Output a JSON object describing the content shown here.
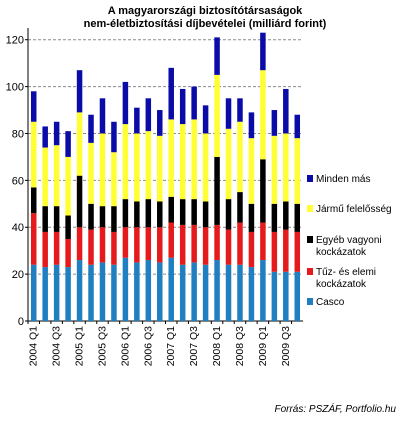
{
  "chart_data": {
    "type": "bar",
    "stacked": true,
    "title_line1": "A magyarországi biztosítótársaságok",
    "title_line2": "nem-életbiztosítási díjbevételei (milliárd forint)",
    "source": "Forrás: PSZÁF, Portfolio.hu",
    "ylim": [
      0,
      125
    ],
    "yticks": [
      0,
      20,
      40,
      60,
      80,
      100,
      120
    ],
    "grid": "dashed horizontal",
    "legend_position": "right",
    "categories": [
      "2004 Q1",
      "2004 Q2",
      "2004 Q3",
      "2004 Q4",
      "2005 Q1",
      "2005 Q2",
      "2005 Q3",
      "2005 Q4",
      "2006 Q1",
      "2006 Q2",
      "2006 Q3",
      "2006 Q4",
      "2007 Q1",
      "2007 Q2",
      "2007 Q3",
      "2007 Q4",
      "2008 Q1",
      "2008 Q2",
      "2008 Q3",
      "2008 Q4",
      "2009 Q1",
      "2009 Q2",
      "2009 Q3",
      "2009 Q4"
    ],
    "xtick_labels": [
      "2004 Q1",
      "2004 Q3",
      "2005 Q1",
      "2005 Q3",
      "2006 Q1",
      "2006 Q3",
      "2007 Q1",
      "2007 Q3",
      "2008 Q1",
      "2008 Q3",
      "2009 Q1",
      "2009 Q3"
    ],
    "series": [
      {
        "name": "Casco",
        "color": "#1F7FC0",
        "values": [
          24,
          23,
          24,
          23,
          26,
          24,
          25,
          24,
          27,
          25,
          26,
          25,
          27,
          24,
          25,
          24,
          26,
          24,
          24,
          23,
          26,
          21,
          21,
          21
        ]
      },
      {
        "name": "Tűz- és elemi kockázatok",
        "color": "#E41A1C",
        "values": [
          22,
          15,
          14,
          12,
          14,
          15,
          15,
          14,
          13,
          15,
          14,
          15,
          15,
          17,
          16,
          16,
          15,
          15,
          18,
          15,
          16,
          17,
          18,
          17
        ]
      },
      {
        "name": "Egyéb vagyoni kockázatok",
        "color": "#000000",
        "values": [
          11,
          11,
          11,
          10,
          22,
          11,
          9,
          11,
          12,
          11,
          12,
          11,
          11,
          11,
          11,
          11,
          29,
          13,
          13,
          12,
          27,
          12,
          12,
          12
        ]
      },
      {
        "name": "Jármű felelősség",
        "color": "#FFFF33",
        "values": [
          28,
          25,
          26,
          25,
          27,
          26,
          31,
          23,
          32,
          29,
          29,
          28,
          33,
          32,
          34,
          29,
          35,
          30,
          30,
          28,
          38,
          29,
          29,
          28
        ]
      },
      {
        "name": "Minden más",
        "color": "#0B0BA8",
        "values": [
          13,
          9,
          10,
          11,
          18,
          12,
          15,
          13,
          18,
          11,
          14,
          11,
          22,
          15,
          14,
          12,
          16,
          13,
          10,
          11,
          16,
          11,
          19,
          10
        ]
      }
    ]
  }
}
